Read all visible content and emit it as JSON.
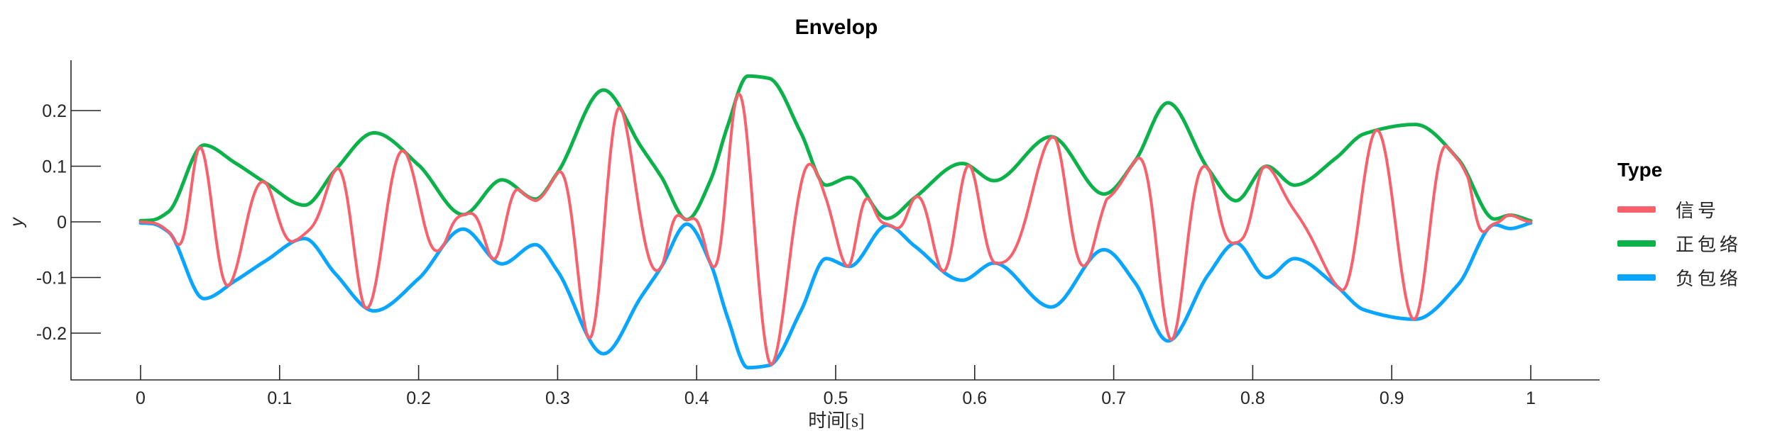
{
  "title": "Envelop",
  "axes": {
    "xlabel": "时间[s]",
    "ylabel": "y",
    "x_ticks": [
      {
        "v": 0.0,
        "label": "0"
      },
      {
        "v": 0.1,
        "label": "0.1"
      },
      {
        "v": 0.2,
        "label": "0.2"
      },
      {
        "v": 0.3,
        "label": "0.3"
      },
      {
        "v": 0.4,
        "label": "0.4"
      },
      {
        "v": 0.5,
        "label": "0.5"
      },
      {
        "v": 0.6,
        "label": "0.6"
      },
      {
        "v": 0.7,
        "label": "0.7"
      },
      {
        "v": 0.8,
        "label": "0.8"
      },
      {
        "v": 0.9,
        "label": "0.9"
      },
      {
        "v": 1.0,
        "label": "1"
      }
    ],
    "y_ticks": [
      {
        "v": 0.2,
        "label": "0.2"
      },
      {
        "v": 0.1,
        "label": "0.1"
      },
      {
        "v": 0.0,
        "label": "0"
      },
      {
        "v": -0.1,
        "label": "-0.1"
      },
      {
        "v": -0.2,
        "label": "-0.2"
      }
    ]
  },
  "legend": {
    "title": "Type",
    "items": [
      {
        "label": "信号",
        "color": "#F8606B"
      },
      {
        "label": "正包络",
        "color": "#0BB24A"
      },
      {
        "label": "负包络",
        "color": "#0AA5FF"
      }
    ]
  },
  "colors": {
    "axis": "#262626",
    "text": "#262626",
    "background": "#ffffff"
  },
  "chart_data": {
    "type": "line",
    "title": "Envelop",
    "xlabel": "时间[s]",
    "ylabel": "y",
    "xlim": [
      -0.05,
      1.05
    ],
    "ylim": [
      -0.285,
      0.29
    ],
    "grid": false,
    "legend_position": "right-outside",
    "series": [
      {
        "name": "信号",
        "color": "#F8606B",
        "definition": "envelope(t)*cos(pi*phase(t))",
        "stroke_width": 4
      },
      {
        "name": "正包络",
        "color": "#0BB24A",
        "definition": "+envelope(t)",
        "stroke_width": 5
      },
      {
        "name": "负包络",
        "color": "#0AA5FF",
        "definition": "-envelope(t)",
        "stroke_width": 5
      }
    ],
    "envelope_nodes": [
      [
        0.0,
        0.002
      ],
      [
        0.008,
        0.003
      ],
      [
        0.02,
        0.018
      ],
      [
        0.0455,
        0.138
      ],
      [
        0.068,
        0.106
      ],
      [
        0.09,
        0.07
      ],
      [
        0.118,
        0.03
      ],
      [
        0.14,
        0.093
      ],
      [
        0.168,
        0.16
      ],
      [
        0.2,
        0.102
      ],
      [
        0.232,
        0.013
      ],
      [
        0.26,
        0.0755
      ],
      [
        0.284,
        0.041
      ],
      [
        0.2998,
        0.088
      ],
      [
        0.333,
        0.237
      ],
      [
        0.36,
        0.135
      ],
      [
        0.3746,
        0.081
      ],
      [
        0.393,
        0.004
      ],
      [
        0.41,
        0.075
      ],
      [
        0.422,
        0.17
      ],
      [
        0.4368,
        0.262
      ],
      [
        0.452,
        0.258
      ],
      [
        0.475,
        0.16
      ],
      [
        0.493,
        0.066
      ],
      [
        0.51,
        0.08
      ],
      [
        0.537,
        0.006
      ],
      [
        0.5571,
        0.044
      ],
      [
        0.591,
        0.105
      ],
      [
        0.614,
        0.074
      ],
      [
        0.655,
        0.153
      ],
      [
        0.693,
        0.05
      ],
      [
        0.7155,
        0.11
      ],
      [
        0.739,
        0.214
      ],
      [
        0.768,
        0.095
      ],
      [
        0.788,
        0.038
      ],
      [
        0.81,
        0.1
      ],
      [
        0.83,
        0.066
      ],
      [
        0.86,
        0.115
      ],
      [
        0.88,
        0.158
      ],
      [
        0.917,
        0.175
      ],
      [
        0.948,
        0.112
      ],
      [
        0.974,
        0.005
      ],
      [
        0.985,
        0.012
      ],
      [
        1.0,
        0.002
      ]
    ],
    "signal_phase_anchors_pi": [
      [
        0.0,
        0.5
      ],
      [
        0.024,
        1
      ],
      [
        0.042,
        2
      ],
      [
        0.0634,
        3
      ],
      [
        0.0894,
        4
      ],
      [
        0.1108,
        5
      ],
      [
        0.1404,
        6
      ],
      [
        0.1619,
        7
      ],
      [
        0.19,
        8
      ],
      [
        0.2175,
        9
      ],
      [
        0.2335,
        10
      ],
      [
        0.2528,
        11
      ],
      [
        0.2727,
        12
      ],
      [
        0.284,
        12.12
      ],
      [
        0.2998,
        12.02
      ],
      [
        0.3217,
        13
      ],
      [
        0.3457,
        14
      ],
      [
        0.3746,
        15
      ],
      [
        0.3917,
        16
      ],
      [
        0.4096,
        17
      ],
      [
        0.4285,
        18
      ],
      [
        0.454,
        19
      ],
      [
        0.487,
        20
      ],
      [
        0.5086,
        21
      ],
      [
        0.525,
        22
      ],
      [
        0.541,
        23
      ],
      [
        0.5571,
        24
      ],
      [
        0.5766,
        25
      ],
      [
        0.5963,
        26
      ],
      [
        0.615,
        27
      ],
      [
        0.657,
        28
      ],
      [
        0.681,
        29
      ],
      [
        0.695,
        29.8
      ],
      [
        0.7155,
        30
      ],
      [
        0.742,
        31
      ],
      [
        0.768,
        32
      ],
      [
        0.787,
        33
      ],
      [
        0.808,
        34
      ],
      [
        0.863,
        35
      ],
      [
        0.889,
        36
      ],
      [
        0.916,
        37
      ],
      [
        0.94,
        38
      ],
      [
        0.955,
        38.1
      ],
      [
        0.97,
        39
      ],
      [
        0.984,
        40
      ],
      [
        1.0,
        40.5
      ]
    ]
  }
}
